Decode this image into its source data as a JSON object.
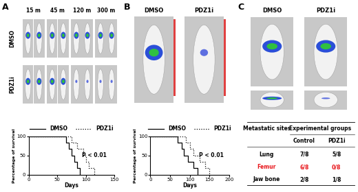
{
  "panels": [
    {
      "letter": "A",
      "image": {
        "columns": [
          "15 m",
          "45 m",
          "120 m",
          "300 m"
        ],
        "rows": [
          "DMSO",
          "PDZ1i"
        ]
      }
    },
    {
      "letter": "B",
      "image": {
        "columns": [
          "DMSO",
          "PDZ1i"
        ]
      }
    },
    {
      "letter": "C",
      "image": {
        "columns": [
          "DMSO",
          "PDZ1i"
        ]
      },
      "table": {
        "header": {
          "sites": "Metastatic sites",
          "groups": "Experimental groups",
          "group_names": [
            "Control",
            "PDZ1i"
          ]
        },
        "rows": [
          {
            "cells": [
              "Lung",
              "7/8",
              "5/8"
            ],
            "color": "#000000"
          },
          {
            "cells": [
              "Femur",
              "6/8",
              "0/8"
            ],
            "color": "#e8161b"
          },
          {
            "cells": [
              "Jaw bone",
              "2/8",
              "1/8"
            ],
            "color": "#000000"
          }
        ]
      }
    }
  ],
  "chart_data": [
    {
      "type": "line",
      "x_label": "Days",
      "y_label": "Percentage of survival",
      "annotation": "P < 0.01",
      "legend": "lower center",
      "xlim": [
        0,
        150
      ],
      "xticks": [
        0,
        50,
        100,
        150
      ],
      "ylim": [
        0,
        100
      ],
      "yticks": [
        0,
        50,
        100
      ],
      "series": [
        {
          "name": "DMSO",
          "color": "#000000",
          "line_style": "solid",
          "x": [
            0,
            65,
            70,
            75,
            80,
            85,
            90
          ],
          "values": [
            100,
            83,
            67,
            50,
            33,
            17,
            0
          ]
        },
        {
          "name": "PDZ1i",
          "color": "#000000",
          "line_style": "dotted",
          "x": [
            0,
            75,
            85,
            95,
            100,
            105,
            115
          ],
          "values": [
            100,
            83,
            67,
            50,
            33,
            17,
            0
          ]
        }
      ]
    },
    {
      "type": "line",
      "x_label": "Days",
      "y_label": "Percentage of survival",
      "annotation": "P < 0.01",
      "legend": "lower center",
      "xlim": [
        0,
        200
      ],
      "xticks": [
        0,
        50,
        100,
        150,
        200
      ],
      "ylim": [
        0,
        100
      ],
      "yticks": [
        0,
        50,
        100
      ],
      "series": [
        {
          "name": "DMSO",
          "color": "#000000",
          "line_style": "solid",
          "x": [
            0,
            70,
            80,
            85,
            95,
            110,
            120
          ],
          "values": [
            100,
            83,
            67,
            50,
            33,
            17,
            0
          ]
        },
        {
          "name": "PDZ1i",
          "color": "#000000",
          "line_style": "dotted",
          "x": [
            0,
            90,
            100,
            110,
            125,
            140,
            150
          ],
          "values": [
            100,
            83,
            67,
            50,
            33,
            17,
            0
          ]
        }
      ]
    }
  ]
}
